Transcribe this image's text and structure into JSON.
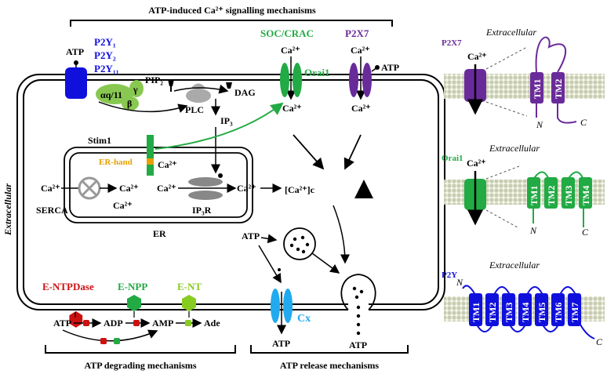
{
  "headings": {
    "signalling": "ATP-induced Ca²⁺ signalling mechanisms",
    "degrading": "ATP degrading mechanisms",
    "release": "ATP release mechanisms",
    "extracellular_side": "Extracellular"
  },
  "receptors": {
    "p2y_lines": [
      "P2Y₁",
      "P2Y₂",
      "P2Y₁₁"
    ],
    "soc_crac": "SOC/CRAC",
    "p2x7": "P2X7",
    "orai1": "Orai1"
  },
  "labels": {
    "atp": "ATP",
    "ca": "Ca²⁺",
    "g_alpha": "αq/11",
    "g_beta": "β",
    "g_gamma": "γ",
    "pip2": "PIP₂",
    "plc": "PLC",
    "dag": "DAG",
    "ip3": "IP₃",
    "stim1": "Stim1",
    "er_hand": "ER-hand",
    "serca": "SERCA",
    "ip3r": "IP₃R",
    "er": "ER",
    "ca_cytosol": "[Ca²⁺]c",
    "adp": "ADP",
    "amp": "AMP",
    "ade": "Ade",
    "cx": "Cx"
  },
  "enzymes": {
    "entpdase": "E-NTPDase",
    "enpp": "E-NPP",
    "ent": "E-NT"
  },
  "panels": {
    "p2x7": {
      "title": "P2X7",
      "extracellular": "Extracellular",
      "tm": [
        "TM1",
        "TM2"
      ],
      "n": "N",
      "c": "C"
    },
    "orai": {
      "title": "Orai1",
      "extracellular": "Extracellular",
      "tm": [
        "TM1",
        "TM2",
        "TM3",
        "TM4"
      ],
      "n": "N",
      "c": "C"
    },
    "p2y": {
      "title": "P2Y",
      "extracellular": "Extracellular",
      "tm": [
        "TM1",
        "TM2",
        "TM3",
        "TM4",
        "TM5",
        "TM6",
        "TM7"
      ],
      "n": "N",
      "c": "C"
    }
  },
  "colors": {
    "p2y_blue": "#1010dd",
    "green": "#22aa44",
    "purple": "#6a2b9a",
    "cx_blue": "#22aaee",
    "entpdase_red": "#cc1111",
    "enpp_green": "#22aa44",
    "ent_lime": "#88cc22",
    "er_hand_orange": "#e8a000"
  }
}
